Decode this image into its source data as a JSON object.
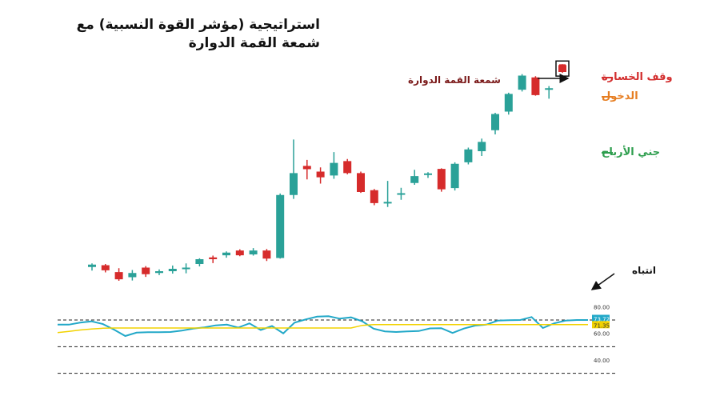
{
  "title": {
    "line1": "استراتيجية (مؤشر القوة النسبية) مع",
    "line2": "شمعة القمة الدوارة"
  },
  "annotations": {
    "stop_loss": "وقف الخسارة",
    "entry": "الدخول",
    "take_profit": "جني الأرباح",
    "spinning_top": "شمعة القمة الدوارة",
    "attention": "انتباه"
  },
  "colors": {
    "bull": "#2aa198",
    "bear": "#d62b2b",
    "rsi": "#22a8c8",
    "rsi_ma": "#f2d200",
    "stop": "#d32f2f",
    "entry": "#e67e22",
    "take_profit": "#2e9e4e"
  },
  "chart_data": [
    {
      "type": "candlestick",
      "title": "",
      "candles": [
        {
          "o": 37.0,
          "h": 38.2,
          "l": 35.8,
          "c": 37.8
        },
        {
          "o": 37.6,
          "h": 38.0,
          "l": 35.2,
          "c": 35.9
        },
        {
          "o": 35.3,
          "h": 36.6,
          "l": 32.4,
          "c": 32.9
        },
        {
          "o": 33.6,
          "h": 36.0,
          "l": 32.5,
          "c": 35.0
        },
        {
          "o": 36.8,
          "h": 37.3,
          "l": 33.7,
          "c": 34.6
        },
        {
          "o": 35.0,
          "h": 36.2,
          "l": 34.3,
          "c": 35.6
        },
        {
          "o": 35.6,
          "h": 37.5,
          "l": 34.8,
          "c": 36.4
        },
        {
          "o": 36.3,
          "h": 38.2,
          "l": 34.9,
          "c": 36.8
        },
        {
          "o": 38.0,
          "h": 39.9,
          "l": 37.2,
          "c": 39.6
        },
        {
          "o": 40.2,
          "h": 40.8,
          "l": 38.3,
          "c": 39.6
        },
        {
          "o": 40.9,
          "h": 42.2,
          "l": 40.1,
          "c": 41.8
        },
        {
          "o": 42.5,
          "h": 42.9,
          "l": 40.6,
          "c": 40.9
        },
        {
          "o": 41.2,
          "h": 43.3,
          "l": 40.8,
          "c": 42.5
        },
        {
          "o": 42.5,
          "h": 43.0,
          "l": 39.0,
          "c": 39.8
        },
        {
          "o": 40.0,
          "h": 61.5,
          "l": 39.8,
          "c": 61.0
        },
        {
          "o": 61.0,
          "h": 79.5,
          "l": 59.7,
          "c": 68.3
        },
        {
          "o": 70.7,
          "h": 72.7,
          "l": 66.2,
          "c": 69.6
        },
        {
          "o": 68.8,
          "h": 70.2,
          "l": 64.8,
          "c": 66.9
        },
        {
          "o": 67.5,
          "h": 75.3,
          "l": 66.4,
          "c": 71.7
        },
        {
          "o": 72.3,
          "h": 73.0,
          "l": 67.9,
          "c": 68.3
        },
        {
          "o": 68.3,
          "h": 68.8,
          "l": 61.7,
          "c": 62.0
        },
        {
          "o": 62.6,
          "h": 63.0,
          "l": 57.6,
          "c": 58.3
        },
        {
          "o": 58.2,
          "h": 65.7,
          "l": 57.0,
          "c": 58.7
        },
        {
          "o": 61.2,
          "h": 63.4,
          "l": 59.4,
          "c": 61.6
        },
        {
          "o": 65.0,
          "h": 69.4,
          "l": 64.4,
          "c": 67.3
        },
        {
          "o": 67.8,
          "h": 68.6,
          "l": 66.7,
          "c": 68.2
        },
        {
          "o": 69.7,
          "h": 69.9,
          "l": 62.1,
          "c": 62.9
        },
        {
          "o": 63.3,
          "h": 71.9,
          "l": 62.5,
          "c": 71.4
        },
        {
          "o": 71.9,
          "h": 76.8,
          "l": 71.2,
          "c": 76.2
        },
        {
          "o": 75.6,
          "h": 79.8,
          "l": 74.0,
          "c": 78.7
        },
        {
          "o": 82.6,
          "h": 88.4,
          "l": 81.2,
          "c": 88.0
        },
        {
          "o": 88.8,
          "h": 95.1,
          "l": 87.8,
          "c": 94.7
        },
        {
          "o": 96.1,
          "h": 101.3,
          "l": 95.5,
          "c": 100.8
        },
        {
          "o": 100.2,
          "h": 100.6,
          "l": 94.1,
          "c": 94.3
        },
        {
          "o": 96.2,
          "h": 97.3,
          "l": 93.1,
          "c": 96.6
        },
        {
          "o": 104.3,
          "h": 104.6,
          "l": 101.7,
          "c": 102.0
        }
      ],
      "stop_loss": 104.6,
      "entry": 101.7,
      "take_profit": 83.0,
      "ylim": [
        30,
        110
      ]
    },
    {
      "type": "line",
      "title": "",
      "series": [
        {
          "values": [
            66.5,
            66.5,
            68.0,
            69.0,
            67.0,
            62.8,
            58.0,
            60.5,
            60.8,
            60.8,
            61.0,
            62.0,
            63.5,
            64.5,
            66.0,
            66.5,
            64.3,
            67.5,
            62.5,
            65.5,
            60.0,
            68.0,
            70.5,
            72.5,
            72.8,
            71.0,
            72.0,
            69.0,
            63.5,
            61.5,
            61.0,
            61.5,
            61.7,
            63.7,
            63.9,
            60.3,
            63.6,
            65.8,
            66.5,
            69.5,
            69.8,
            70.0,
            72.2,
            64.0,
            67.5,
            69.5,
            70.0,
            70.0
          ]
        },
        {
          "values": [
            60.5,
            61.5,
            62.5,
            63.2,
            63.8,
            64.0,
            64.0,
            64.0,
            64.0,
            64.0,
            64.0,
            64.0,
            64.0,
            64.0,
            64.0,
            64.0,
            64.0,
            64.0,
            64.0,
            64.0,
            64.0,
            64.0,
            64.0,
            64.0,
            64.0,
            64.0,
            64.0,
            66.0,
            66.5,
            66.5,
            66.5,
            66.5,
            66.5,
            66.5,
            66.5,
            66.5,
            66.5,
            66.5,
            66.5,
            66.5,
            66.5,
            66.5,
            66.5,
            66.5,
            66.5,
            66.5,
            66.5,
            66.5
          ]
        }
      ],
      "levels": [
        70,
        50,
        30
      ],
      "tick_labels": [
        "80.00",
        "73.72",
        "71.35",
        "60.00",
        "40.00"
      ],
      "ylim": [
        28,
        82
      ]
    }
  ]
}
